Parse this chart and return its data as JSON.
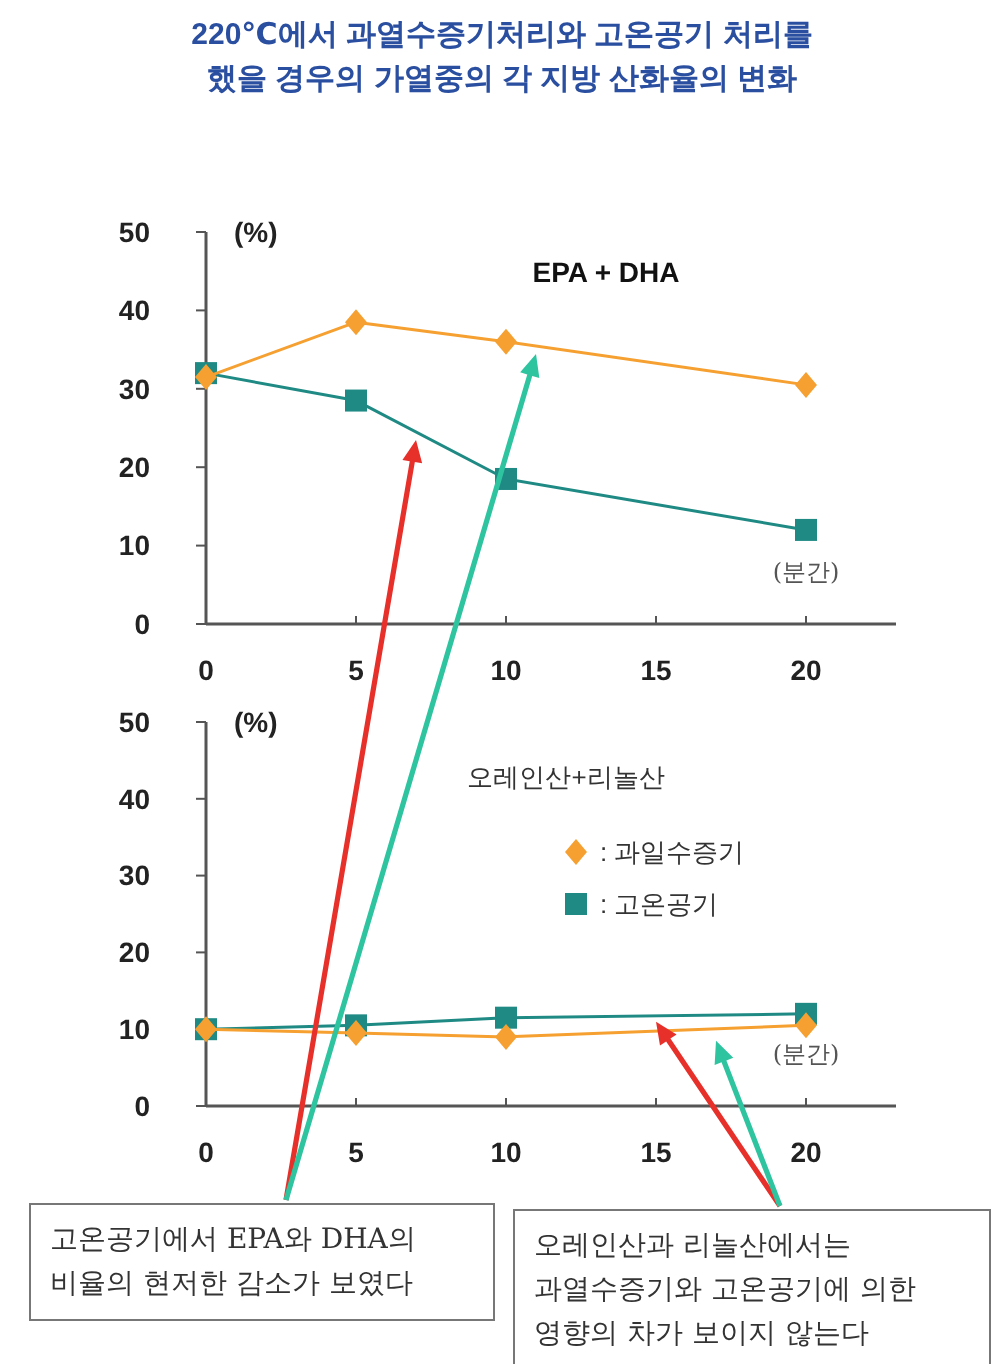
{
  "chart_data": [
    {
      "type": "line",
      "title": "220℃에서 과열수증기처리와 고온공기 처리를\n했을 경우의 가열중의 각 지방 산화율의 변화",
      "subtitle": "EPA + DHA",
      "xlabel": "(분간)",
      "ylabel": "(%)",
      "x": [
        0,
        5,
        10,
        20
      ],
      "xlim": [
        0,
        23
      ],
      "xticks": [
        0,
        5,
        10,
        15,
        20
      ],
      "ylim": [
        0,
        50
      ],
      "yticks": [
        0,
        10,
        20,
        30,
        40,
        50
      ],
      "series": [
        {
          "color": "#f5a030",
          "marker": "diamond",
          "values": [
            31.5,
            38.5,
            36,
            30.5
          ]
        },
        {
          "color": "#1f8a84",
          "marker": "square",
          "values": [
            32,
            28.5,
            18.5,
            12
          ]
        }
      ],
      "annotations": [
        "고온공기에서 EPA와 DHA의\n비율의 현저한 감소가 보였다"
      ]
    },
    {
      "type": "line",
      "title": "오레인산+리놀산",
      "xlabel": "(분간)",
      "ylabel": "(%)",
      "x": [
        0,
        5,
        10,
        20
      ],
      "xlim": [
        0,
        23
      ],
      "xticks": [
        0,
        5,
        10,
        15,
        20
      ],
      "ylim": [
        0,
        50
      ],
      "yticks": [
        0,
        10,
        20,
        30,
        40,
        50
      ],
      "legend": "top right",
      "series": [
        {
          "name": ": 과일수증기",
          "color": "#f5a030",
          "marker": "diamond",
          "values": [
            10,
            9.5,
            9,
            10.5
          ]
        },
        {
          "name": ": 고온공기",
          "color": "#1f8a84",
          "marker": "square",
          "values": [
            10,
            10.5,
            11.5,
            12
          ]
        }
      ],
      "annotations": [
        "오레인산과 리놀산에서는\n과열수증기와 고온공기에 의한\n영향의 차가 보이지 않는다"
      ]
    }
  ]
}
